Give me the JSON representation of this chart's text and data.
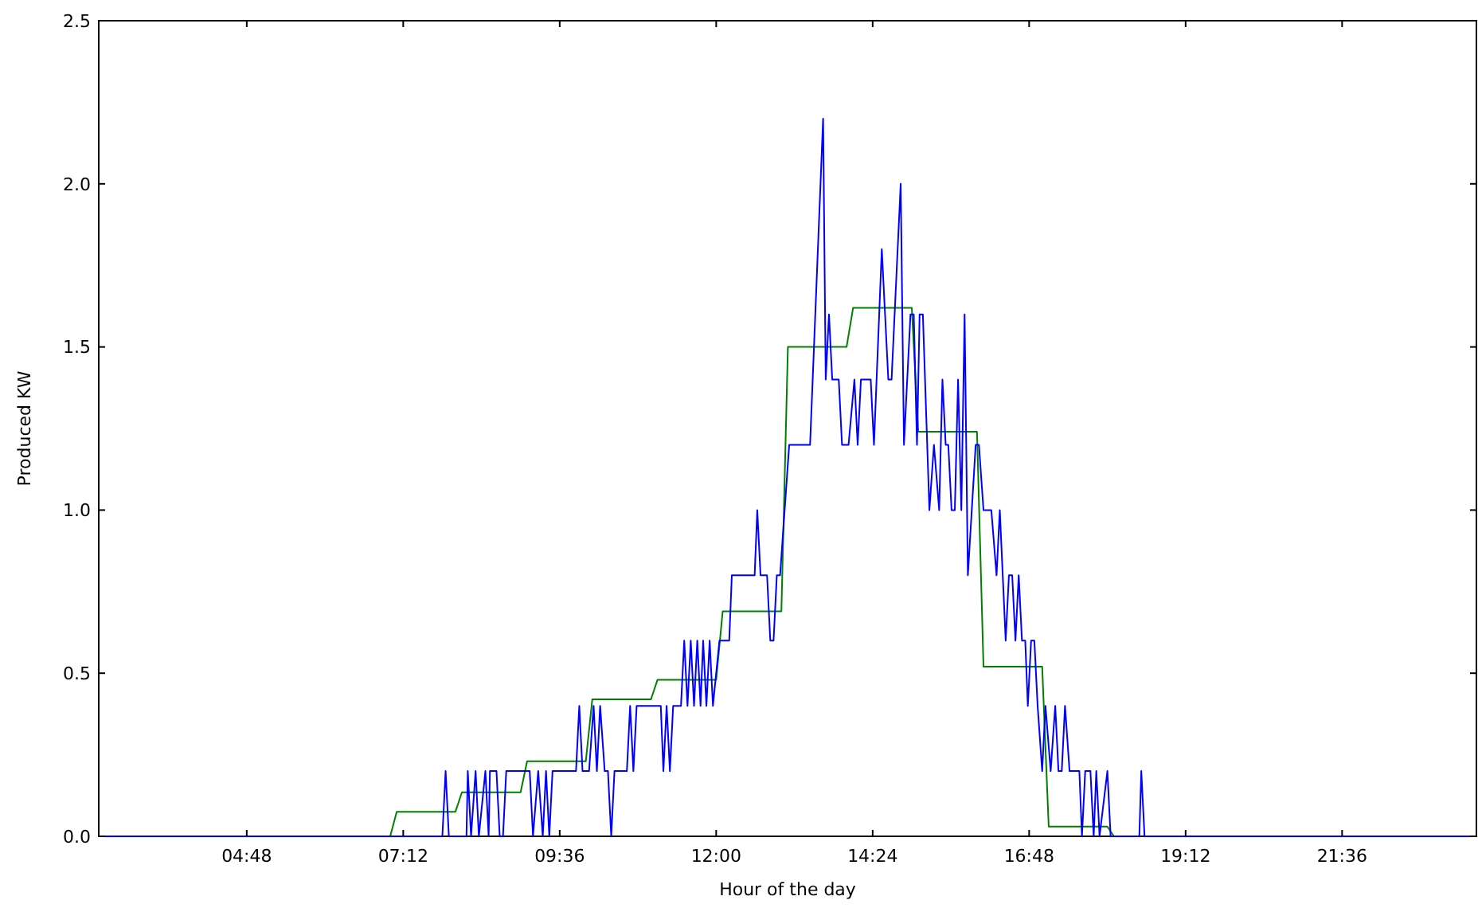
{
  "chart_data": {
    "type": "line",
    "xlabel": "Hour of the day",
    "ylabel": "Produced KW",
    "xlim": [
      2.53,
      23.66
    ],
    "ylim": [
      0,
      2.5
    ],
    "xticks": [
      {
        "value": 4.8,
        "label": "04:48"
      },
      {
        "value": 7.2,
        "label": "07:12"
      },
      {
        "value": 9.6,
        "label": "09:36"
      },
      {
        "value": 12,
        "label": "12:00"
      },
      {
        "value": 14.4,
        "label": "14:24"
      },
      {
        "value": 16.8,
        "label": "16:48"
      },
      {
        "value": 19.2,
        "label": "19:12"
      },
      {
        "value": 21.6,
        "label": "21:36"
      }
    ],
    "yticks": [
      {
        "value": 0,
        "label": "0.0"
      },
      {
        "value": 0.5,
        "label": "0.5"
      },
      {
        "value": 1,
        "label": "1.0"
      },
      {
        "value": 1.5,
        "label": "1.5"
      },
      {
        "value": 2,
        "label": "2.0"
      },
      {
        "value": 2.5,
        "label": "2.5"
      }
    ],
    "grid": false,
    "marker": "none",
    "line_style": "solid",
    "series": [
      {
        "color": "#0000ff",
        "x": [
          2.53,
          7.8,
          7.85,
          7.9,
          8.17,
          8.19,
          8.24,
          8.31,
          8.36,
          8.46,
          8.51,
          8.53,
          8.63,
          8.68,
          8.73,
          8.78,
          8.83,
          9.14,
          9.19,
          9.27,
          9.34,
          9.39,
          9.44,
          9.49,
          9.85,
          9.9,
          9.95,
          10.05,
          10.12,
          10.17,
          10.22,
          10.29,
          10.34,
          10.39,
          10.44,
          10.63,
          10.68,
          10.73,
          10.78,
          11.15,
          11.19,
          11.24,
          11.29,
          11.34,
          11.46,
          11.51,
          11.56,
          11.61,
          11.66,
          11.71,
          11.76,
          11.8,
          11.85,
          11.9,
          11.95,
          12.05,
          12.2,
          12.24,
          12.59,
          12.63,
          12.68,
          12.78,
          12.83,
          12.88,
          12.93,
          12.98,
          13.05,
          13.12,
          13.44,
          13.64,
          13.68,
          13.73,
          13.78,
          13.88,
          13.93,
          14.03,
          14.12,
          14.17,
          14.22,
          14.37,
          14.42,
          14.54,
          14.64,
          14.69,
          14.83,
          14.88,
          14.98,
          15.03,
          15.08,
          15.12,
          15.17,
          15.27,
          15.34,
          15.42,
          15.47,
          15.52,
          15.56,
          15.61,
          15.66,
          15.71,
          15.76,
          15.81,
          15.86,
          15.98,
          16.03,
          16.1,
          16.22,
          16.3,
          16.35,
          16.44,
          16.49,
          16.54,
          16.59,
          16.64,
          16.69,
          16.74,
          16.78,
          16.83,
          16.88,
          16.93,
          17.0,
          17.05,
          17.13,
          17.2,
          17.25,
          17.3,
          17.35,
          17.42,
          17.57,
          17.61,
          17.66,
          17.74,
          17.79,
          17.83,
          17.88,
          18.0,
          18.05,
          18.49,
          18.52,
          18.57,
          23.66
        ],
        "values": [
          0,
          0,
          0.2,
          0,
          0,
          0.2,
          0,
          0.2,
          0,
          0.2,
          0,
          0.2,
          0.2,
          0,
          0,
          0.2,
          0.2,
          0.2,
          0,
          0.2,
          0,
          0.2,
          0,
          0.2,
          0.2,
          0.4,
          0.2,
          0.2,
          0.4,
          0.2,
          0.4,
          0.2,
          0.2,
          0,
          0.2,
          0.2,
          0.4,
          0.2,
          0.4,
          0.4,
          0.2,
          0.4,
          0.2,
          0.4,
          0.4,
          0.6,
          0.4,
          0.6,
          0.4,
          0.6,
          0.4,
          0.6,
          0.4,
          0.6,
          0.4,
          0.6,
          0.6,
          0.8,
          0.8,
          1.0,
          0.8,
          0.8,
          0.6,
          0.6,
          0.8,
          0.8,
          1.0,
          1.2,
          1.2,
          2.2,
          1.4,
          1.6,
          1.4,
          1.4,
          1.2,
          1.2,
          1.4,
          1.2,
          1.4,
          1.4,
          1.2,
          1.8,
          1.4,
          1.4,
          2.0,
          1.2,
          1.6,
          1.6,
          1.2,
          1.6,
          1.6,
          1.0,
          1.2,
          1.0,
          1.4,
          1.2,
          1.2,
          1.0,
          1.0,
          1.4,
          1.0,
          1.6,
          0.8,
          1.2,
          1.2,
          1.0,
          1.0,
          0.8,
          1.0,
          0.6,
          0.8,
          0.8,
          0.6,
          0.8,
          0.6,
          0.6,
          0.4,
          0.6,
          0.6,
          0.4,
          0.2,
          0.4,
          0.2,
          0.4,
          0.2,
          0.2,
          0.4,
          0.2,
          0.2,
          0,
          0.2,
          0.2,
          0,
          0.2,
          0,
          0.2,
          0,
          0,
          0.2,
          0,
          0
        ]
      },
      {
        "color": "#008000",
        "x": [
          7.0,
          7.1,
          8.0,
          8.1,
          9.0,
          9.1,
          10.0,
          10.1,
          11.0,
          11.1,
          12.0,
          12.1,
          13.0,
          13.1,
          14.0,
          14.1,
          15.0,
          15.1,
          16.0,
          16.1,
          17.0,
          17.1,
          18.0,
          18.1
        ],
        "values": [
          0,
          0.075,
          0.075,
          0.135,
          0.135,
          0.23,
          0.23,
          0.42,
          0.42,
          0.48,
          0.48,
          0.69,
          0.69,
          1.5,
          1.5,
          1.62,
          1.62,
          1.24,
          1.24,
          0.52,
          0.52,
          0.03,
          0.03,
          0
        ]
      }
    ]
  }
}
